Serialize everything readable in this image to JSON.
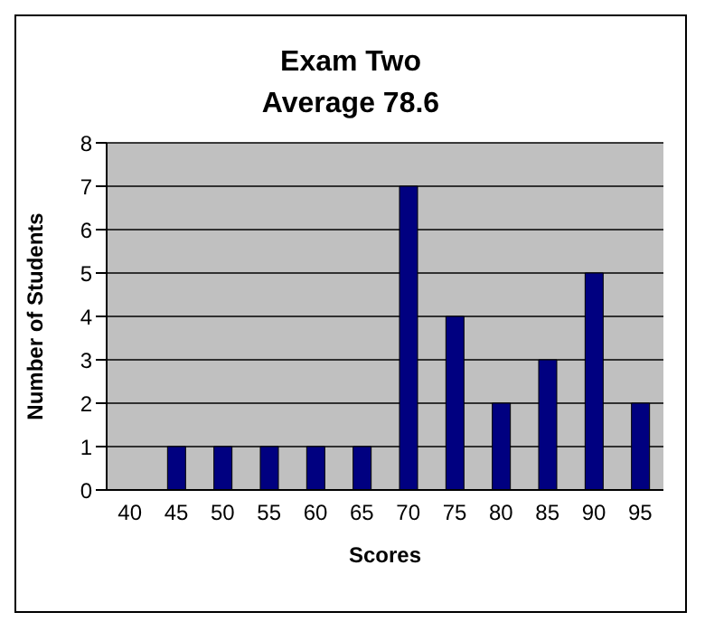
{
  "chart_data": {
    "type": "bar",
    "title": "Exam Two",
    "subtitle": "Average 78.6",
    "xlabel": "Scores",
    "ylabel": "Number of Students",
    "categories": [
      "40",
      "45",
      "50",
      "55",
      "60",
      "65",
      "70",
      "75",
      "80",
      "85",
      "90",
      "95"
    ],
    "values": [
      0,
      1,
      1,
      1,
      1,
      1,
      7,
      4,
      2,
      3,
      5,
      2
    ],
    "color": "#000080",
    "ylim": [
      0,
      8
    ],
    "yticks": [
      0,
      1,
      2,
      3,
      4,
      5,
      6,
      7,
      8
    ],
    "grid": "y",
    "legend": false
  }
}
